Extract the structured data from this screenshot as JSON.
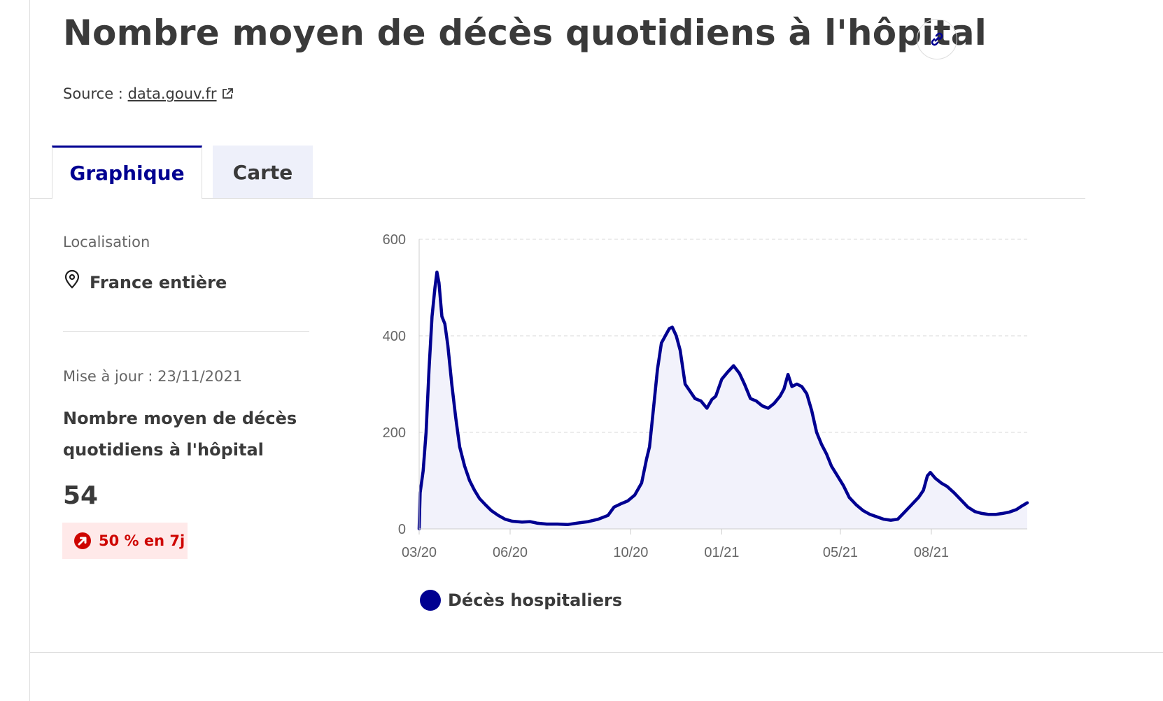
{
  "header": {
    "title": "Nombre moyen de décès quotidiens à l'hôpital",
    "source_prefix": "Source :",
    "source_link": "data.gouv.fr"
  },
  "tabs": [
    {
      "label": "Graphique",
      "active": true
    },
    {
      "label": "Carte",
      "active": false
    }
  ],
  "sidebar": {
    "location_label": "Localisation",
    "location_value": "France entière",
    "update_text": "Mise à jour : 23/11/2021",
    "metric_name": "Nombre moyen de décès quotidiens à l'hôpital",
    "metric_value": "54",
    "trend_text": "50 % en 7j",
    "trend_direction": "up"
  },
  "colors": {
    "accent": "#000091",
    "trend_red": "#ce0500",
    "trend_bg": "#ffe9e9",
    "area_fill": "#f2f2fb",
    "inactive_tab_bg": "#eef0fa"
  },
  "icons": [
    "link-icon",
    "external-link-icon",
    "map-pin-icon",
    "trend-up-icon"
  ],
  "chart_data": {
    "type": "area",
    "series": [
      {
        "name": "Décès hospitaliers",
        "points": [
          [
            "2020-03-18",
            0
          ],
          [
            "2020-03-19",
            75
          ],
          [
            "2020-03-22",
            120
          ],
          [
            "2020-03-25",
            200
          ],
          [
            "2020-03-28",
            330
          ],
          [
            "2020-03-31",
            440
          ],
          [
            "2020-04-03",
            500
          ],
          [
            "2020-04-05",
            532
          ],
          [
            "2020-04-07",
            510
          ],
          [
            "2020-04-10",
            440
          ],
          [
            "2020-04-13",
            425
          ],
          [
            "2020-04-16",
            380
          ],
          [
            "2020-04-20",
            300
          ],
          [
            "2020-04-24",
            230
          ],
          [
            "2020-04-28",
            170
          ],
          [
            "2020-05-03",
            130
          ],
          [
            "2020-05-08",
            100
          ],
          [
            "2020-05-13",
            80
          ],
          [
            "2020-05-18",
            63
          ],
          [
            "2020-05-24",
            50
          ],
          [
            "2020-05-30",
            38
          ],
          [
            "2020-06-06",
            28
          ],
          [
            "2020-06-13",
            20
          ],
          [
            "2020-06-20",
            16
          ],
          [
            "2020-06-30",
            14
          ],
          [
            "2020-07-08",
            15
          ],
          [
            "2020-07-15",
            12
          ],
          [
            "2020-07-25",
            10
          ],
          [
            "2020-08-05",
            10
          ],
          [
            "2020-08-15",
            9
          ],
          [
            "2020-08-25",
            12
          ],
          [
            "2020-09-05",
            15
          ],
          [
            "2020-09-15",
            20
          ],
          [
            "2020-09-25",
            28
          ],
          [
            "2020-10-01",
            45
          ],
          [
            "2020-10-08",
            52
          ],
          [
            "2020-10-15",
            58
          ],
          [
            "2020-10-22",
            70
          ],
          [
            "2020-10-29",
            95
          ],
          [
            "2020-11-03",
            145
          ],
          [
            "2020-11-06",
            170
          ],
          [
            "2020-11-10",
            250
          ],
          [
            "2020-11-14",
            330
          ],
          [
            "2020-11-18",
            385
          ],
          [
            "2020-11-22",
            400
          ],
          [
            "2020-11-26",
            415
          ],
          [
            "2020-11-29",
            418
          ],
          [
            "2020-12-03",
            400
          ],
          [
            "2020-12-07",
            370
          ],
          [
            "2020-12-12",
            300
          ],
          [
            "2020-12-17",
            285
          ],
          [
            "2020-12-22",
            270
          ],
          [
            "2020-12-28",
            265
          ],
          [
            "2021-01-03",
            250
          ],
          [
            "2021-01-08",
            268
          ],
          [
            "2021-01-12",
            275
          ],
          [
            "2021-01-18",
            310
          ],
          [
            "2021-01-24",
            325
          ],
          [
            "2021-01-30",
            338
          ],
          [
            "2021-02-05",
            322
          ],
          [
            "2021-02-10",
            300
          ],
          [
            "2021-02-16",
            270
          ],
          [
            "2021-02-22",
            265
          ],
          [
            "2021-02-28",
            255
          ],
          [
            "2021-03-06",
            250
          ],
          [
            "2021-03-12",
            260
          ],
          [
            "2021-03-18",
            275
          ],
          [
            "2021-03-22",
            290
          ],
          [
            "2021-03-26",
            320
          ],
          [
            "2021-03-30",
            295
          ],
          [
            "2021-04-04",
            300
          ],
          [
            "2021-04-09",
            295
          ],
          [
            "2021-04-14",
            280
          ],
          [
            "2021-04-19",
            245
          ],
          [
            "2021-04-24",
            200
          ],
          [
            "2021-04-29",
            175
          ],
          [
            "2021-05-04",
            155
          ],
          [
            "2021-05-09",
            130
          ],
          [
            "2021-05-15",
            110
          ],
          [
            "2021-05-21",
            90
          ],
          [
            "2021-05-27",
            65
          ],
          [
            "2021-06-03",
            50
          ],
          [
            "2021-06-10",
            38
          ],
          [
            "2021-06-17",
            30
          ],
          [
            "2021-06-24",
            25
          ],
          [
            "2021-07-01",
            20
          ],
          [
            "2021-07-08",
            18
          ],
          [
            "2021-07-15",
            20
          ],
          [
            "2021-07-22",
            35
          ],
          [
            "2021-07-29",
            50
          ],
          [
            "2021-08-05",
            65
          ],
          [
            "2021-08-10",
            80
          ],
          [
            "2021-08-14",
            110
          ],
          [
            "2021-08-17",
            117
          ],
          [
            "2021-08-22",
            105
          ],
          [
            "2021-08-28",
            95
          ],
          [
            "2021-09-03",
            88
          ],
          [
            "2021-09-10",
            75
          ],
          [
            "2021-09-17",
            60
          ],
          [
            "2021-09-24",
            45
          ],
          [
            "2021-10-01",
            36
          ],
          [
            "2021-10-08",
            32
          ],
          [
            "2021-10-15",
            30
          ],
          [
            "2021-10-22",
            30
          ],
          [
            "2021-10-29",
            32
          ],
          [
            "2021-11-05",
            35
          ],
          [
            "2021-11-12",
            40
          ],
          [
            "2021-11-18",
            48
          ],
          [
            "2021-11-23",
            54
          ]
        ]
      }
    ],
    "x_ticks": [
      {
        "date": "2020-03-18",
        "label": "03/20"
      },
      {
        "date": "2020-06-18",
        "label": "06/20"
      },
      {
        "date": "2020-10-18",
        "label": "10/20"
      },
      {
        "date": "2021-01-18",
        "label": "01/21"
      },
      {
        "date": "2021-05-18",
        "label": "05/21"
      },
      {
        "date": "2021-08-18",
        "label": "08/21"
      }
    ],
    "y_ticks": [
      0,
      200,
      400,
      600
    ],
    "ylim": [
      0,
      600
    ],
    "xlim": [
      "2020-03-18",
      "2021-11-23"
    ],
    "grid": true,
    "legend": "bottom"
  }
}
